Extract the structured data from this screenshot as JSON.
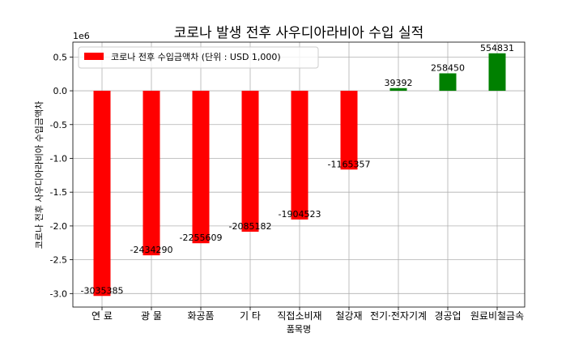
{
  "chart_data": {
    "type": "bar",
    "title": "코로나 발생 전후 사우디아라비아 수입 실적",
    "xlabel": "품목명",
    "ylabel": "코로나 전후 사우디아라비아 수입금액차",
    "y_scale_label": "1e6",
    "y_multiplier": 1000000,
    "ylim": [
      -3200000,
      720000
    ],
    "yticks": [
      -3000000,
      -2500000,
      -2000000,
      -1500000,
      -1000000,
      -500000,
      0,
      500000
    ],
    "ytick_labels": [
      "-3.0",
      "-2.5",
      "-2.0",
      "-1.5",
      "-1.0",
      "-0.5",
      "0.0",
      "0.5"
    ],
    "grid": true,
    "legend_position": "top-left",
    "categories": [
      "연 료",
      "광 물",
      "화공품",
      "기 타",
      "직접소비재",
      "철강재",
      "전기·전자기계",
      "경공업",
      "원료비철금속"
    ],
    "series": [
      {
        "name": "코로나 전후 수입금액차 (단위 : USD 1,000)",
        "values": [
          -3035385,
          -2434290,
          -2255609,
          -2085182,
          -1904523,
          -1165357,
          39392,
          258450,
          554831
        ],
        "data_labels": [
          "-3035385",
          "-2434290",
          "-2255609",
          "-2085182",
          "-1904523",
          "-1165357",
          "39392",
          "258450",
          "554831"
        ]
      }
    ],
    "colors": {
      "negative": "#ff0000",
      "positive": "#008000"
    }
  }
}
